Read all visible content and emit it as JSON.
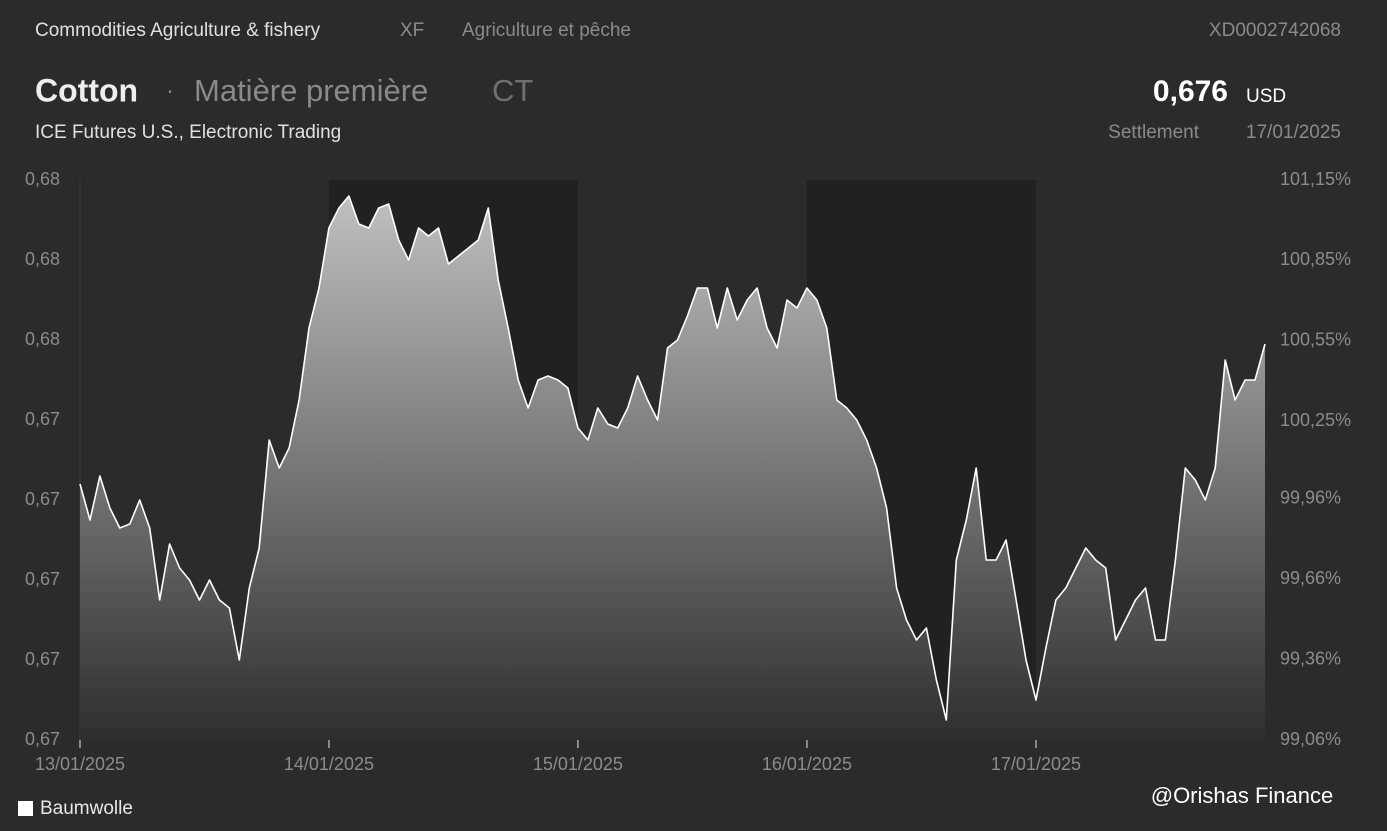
{
  "header": {
    "category": "Commodities Agriculture & fishery",
    "code": "XF",
    "category_fr": "Agriculture et pêche",
    "isin": "XD0002742068",
    "name": "Cotton",
    "separator": "·",
    "asset_type": "Matière première",
    "symbol": "CT",
    "price": "0,676",
    "currency": "USD",
    "exchange": "ICE Futures U.S., Electronic Trading",
    "price_type": "Settlement",
    "date": "17/01/2025"
  },
  "watermark": "@Orishas Finance",
  "chart_data": {
    "type": "area",
    "series": [
      {
        "name": "Baumwolle",
        "color": "#ffffff",
        "values": [
          0.6724,
          0.6715,
          0.6726,
          0.6718,
          0.6713,
          0.6714,
          0.672,
          0.6713,
          0.6695,
          0.6709,
          0.6703,
          0.67,
          0.6695,
          0.67,
          0.6695,
          0.6693,
          0.668,
          0.6698,
          0.6708,
          0.6735,
          0.6728,
          0.6733,
          0.6745,
          0.6763,
          0.6773,
          0.6788,
          0.6793,
          0.6796,
          0.6789,
          0.6788,
          0.6793,
          0.6794,
          0.6785,
          0.678,
          0.6788,
          0.6786,
          0.6788,
          0.6779,
          0.6781,
          0.6783,
          0.6785,
          0.6793,
          0.6775,
          0.6763,
          0.675,
          0.6743,
          0.675,
          0.6751,
          0.675,
          0.6748,
          0.6738,
          0.6735,
          0.6743,
          0.6739,
          0.6738,
          0.6743,
          0.6751,
          0.6745,
          0.674,
          0.6758,
          0.676,
          0.6766,
          0.6773,
          0.6773,
          0.6763,
          0.6773,
          0.6765,
          0.677,
          0.6773,
          0.6763,
          0.6758,
          0.677,
          0.6768,
          0.6773,
          0.677,
          0.6763,
          0.6745,
          0.6743,
          0.674,
          0.6735,
          0.6728,
          0.6718,
          0.6698,
          0.669,
          0.6685,
          0.6688,
          0.6675,
          0.6665,
          0.6705,
          0.6715,
          0.6728,
          0.6705,
          0.6705,
          0.671,
          0.6695,
          0.668,
          0.667,
          0.6683,
          0.6695,
          0.6698,
          0.6703,
          0.6708,
          0.6705,
          0.6703,
          0.6685,
          0.669,
          0.6695,
          0.6698,
          0.6685,
          0.6685,
          0.6705,
          0.6728,
          0.6725,
          0.672,
          0.6728,
          0.6755,
          0.6745,
          0.675,
          0.675,
          0.6759
        ]
      }
    ],
    "xlim": [
      0,
      119
    ],
    "xticks": [
      {
        "value": 0,
        "label": "13/01/2025"
      },
      {
        "value": 25,
        "label": "14/01/2025"
      },
      {
        "value": 50,
        "label": "15/01/2025"
      },
      {
        "value": 73,
        "label": "16/01/2025"
      },
      {
        "value": 96,
        "label": "17/01/2025"
      }
    ],
    "ylim": [
      0.666,
      0.68
    ],
    "yticks": [
      {
        "value": 0.68,
        "label": "0,68"
      },
      {
        "value": 0.678,
        "label": "0,68"
      },
      {
        "value": 0.676,
        "label": "0,68"
      },
      {
        "value": 0.674,
        "label": "0,67"
      },
      {
        "value": 0.672,
        "label": "0,67"
      },
      {
        "value": 0.67,
        "label": "0,67"
      },
      {
        "value": 0.668,
        "label": "0,67"
      },
      {
        "value": 0.666,
        "label": "0,67"
      }
    ],
    "y2lim": [
      99.06,
      101.15
    ],
    "y2ticks": [
      {
        "value": 101.15,
        "label": "101,15%"
      },
      {
        "value": 100.85,
        "label": "100,85%"
      },
      {
        "value": 100.55,
        "label": "100,55%"
      },
      {
        "value": 100.25,
        "label": "100,25%"
      },
      {
        "value": 99.96,
        "label": "99,96%"
      },
      {
        "value": 99.66,
        "label": "99,66%"
      },
      {
        "value": 99.36,
        "label": "99,36%"
      },
      {
        "value": 99.06,
        "label": "99,06%"
      }
    ],
    "grid": false,
    "legend": "bottom-left"
  }
}
